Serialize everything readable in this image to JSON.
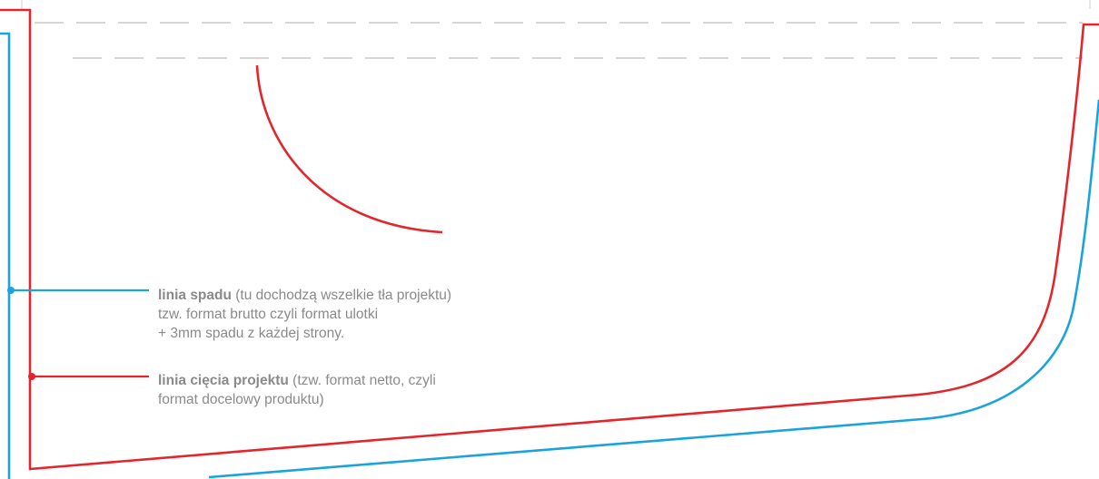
{
  "colors": {
    "bleed_line": "#1ba3dd",
    "trim_line": "#e3262b",
    "guide_line": "#bdbdbd",
    "label_text": "#8a8a8a"
  },
  "labels": {
    "bleed": {
      "title": "linia spadu",
      "line1_rest": " (tu dochodzą wszelkie tła projektu)",
      "line2": "tzw. format brutto czyli format ulotki",
      "line3": "+ 3mm spadu z każdej strony."
    },
    "trim": {
      "title": "linia cięcia projektu",
      "line1_rest": " (tzw. format netto, czyli",
      "line2": "format docelowy produktu)"
    }
  }
}
